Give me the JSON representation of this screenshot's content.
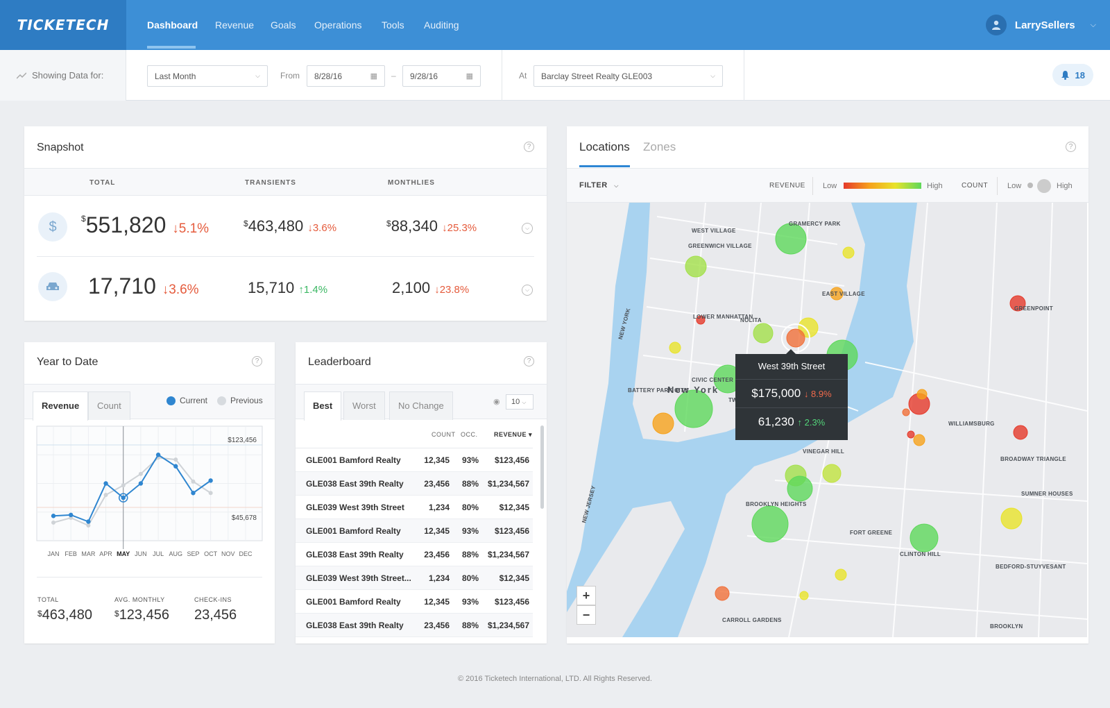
{
  "brand": {
    "logo": "TICKETECH"
  },
  "nav": {
    "items": [
      {
        "label": "Dashboard"
      },
      {
        "label": "Revenue"
      },
      {
        "label": "Goals"
      },
      {
        "label": "Operations"
      },
      {
        "label": "Tools"
      },
      {
        "label": "Auditing"
      }
    ]
  },
  "user": {
    "name": "LarrySellers"
  },
  "filters": {
    "showing_label": "Showing Data for:",
    "period": "Last Month",
    "from_label": "From",
    "from_date": "8/28/16",
    "dash": "–",
    "to_date": "9/28/16",
    "at_label": "At",
    "location": "Barclay Street Realty GLE003",
    "notifications": "18"
  },
  "snapshot": {
    "title": "Snapshot",
    "help": "?",
    "columns": [
      "TOTAL",
      "TRANSIENTS",
      "MONTHLIES"
    ],
    "revenue": {
      "currency": "$",
      "total": "551,820",
      "total_change": "↓5.1%",
      "transients": "463,480",
      "transients_change": "↓3.6%",
      "monthlies": "88,340",
      "monthlies_change": "↓25.3%"
    },
    "count": {
      "total": "17,710",
      "total_change": "↓3.6%",
      "transients": "15,710",
      "transients_change": "↑1.4%",
      "monthlies": "2,100",
      "monthlies_change": "↓23.8%"
    }
  },
  "ytd": {
    "title": "Year to Date",
    "help": "?",
    "tabs": [
      "Revenue",
      "Count"
    ],
    "legend": {
      "current": "Current",
      "previous": "Previous"
    },
    "colors": {
      "current": "#2f86d0",
      "previous": "#cfd3d7"
    },
    "y_top_label": "$123,456",
    "y_bottom_label": "$45,678",
    "summary": [
      {
        "label": "TOTAL",
        "currency": "$",
        "value": "463,480"
      },
      {
        "label": "AVG. MONTHLY",
        "currency": "$",
        "value": "123,456"
      },
      {
        "label": "CHECK-INS",
        "currency": "",
        "value": "23,456"
      }
    ]
  },
  "chart_data": {
    "type": "line",
    "categories": [
      "JAN",
      "FEB",
      "MAR",
      "APR",
      "MAY",
      "JUN",
      "JUL",
      "AUG",
      "SEP",
      "OCT",
      "NOV",
      "DEC"
    ],
    "highlight_category": "MAY",
    "series": [
      {
        "name": "Current",
        "values": [
          56000,
          57000,
          50000,
          90000,
          75000,
          90000,
          120000,
          108000,
          80000,
          93000,
          null,
          null
        ]
      },
      {
        "name": "Previous",
        "values": [
          49000,
          54000,
          46000,
          78000,
          88000,
          100000,
          117000,
          115000,
          92000,
          80000,
          null,
          null
        ]
      }
    ],
    "ylim": [
      30000,
      150000
    ]
  },
  "leaderboard": {
    "title": "Leaderboard",
    "help": "?",
    "tabs": [
      "Best",
      "Worst",
      "No Change"
    ],
    "page_size": "10",
    "columns": [
      "COUNT",
      "OCC.",
      "REVENUE ▾"
    ],
    "rows": [
      {
        "name": "GLE001 Bamford Realty",
        "count": "12,345",
        "occ": "93%",
        "revenue": "$123,456"
      },
      {
        "name": "GLE038 East 39th Realty",
        "count": "23,456",
        "occ": "88%",
        "revenue": "$1,234,567"
      },
      {
        "name": "GLE039 West 39th Street",
        "count": "1,234",
        "occ": "80%",
        "revenue": "$12,345"
      },
      {
        "name": "GLE001 Bamford Realty",
        "count": "12,345",
        "occ": "93%",
        "revenue": "$123,456"
      },
      {
        "name": "GLE038 East 39th Realty",
        "count": "23,456",
        "occ": "88%",
        "revenue": "$1,234,567"
      },
      {
        "name": "GLE039 West 39th Street...",
        "count": "1,234",
        "occ": "80%",
        "revenue": "$12,345"
      },
      {
        "name": "GLE001 Bamford Realty",
        "count": "12,345",
        "occ": "93%",
        "revenue": "$123,456"
      },
      {
        "name": "GLE038 East 39th Realty",
        "count": "23,456",
        "occ": "88%",
        "revenue": "$1,234,567"
      }
    ]
  },
  "locations": {
    "tabs": [
      "Locations",
      "Zones"
    ],
    "help": "?",
    "filter_label": "FILTER",
    "revenue_label": "REVENUE",
    "count_label": "COUNT",
    "low": "Low",
    "high": "High",
    "zoom_in": "+",
    "zoom_out": "−",
    "neighborhoods": [
      "WEST VILLAGE",
      "GREENWICH VILLAGE",
      "GRAMERCY PARK",
      "EAST VILLAGE",
      "LOWER MANHATTAN",
      "NOLITA",
      "New York",
      "BATTERY PARK CITY",
      "CIVIC CENTER",
      "TWO BRIDGES",
      "VINEGAR HILL",
      "BROOKLYN HEIGHTS",
      "FORT GREENE",
      "CLINTON HILL",
      "WILLIAMSBURG",
      "GREENPOINT",
      "BROADWAY TRIANGLE",
      "SUMNER HOUSES",
      "BEDFORD-STUYVESANT",
      "CARROLL GARDENS",
      "BROOKLYN",
      "NEW JERSEY",
      "NEW YORK"
    ],
    "tooltip": {
      "title": "West 39th Street",
      "revenue": "$175,000",
      "revenue_change": "↓ 8.9%",
      "count": "61,230",
      "count_change": "↑ 2.3%"
    }
  },
  "footer": {
    "text": "© 2016 Ticketech International, LTD. All Rights Reserved."
  }
}
